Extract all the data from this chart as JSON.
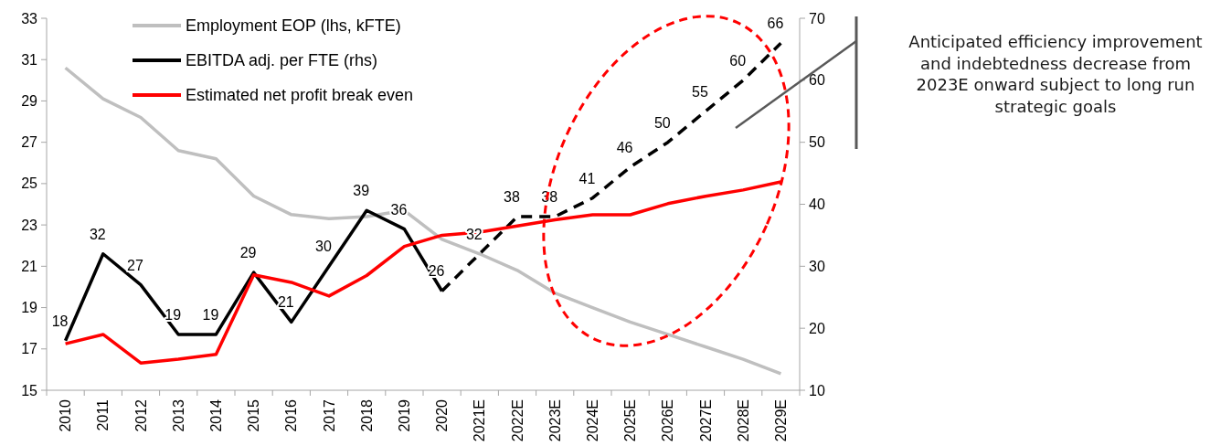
{
  "chart_data": {
    "type": "line",
    "categories": [
      "2010",
      "2011",
      "2012",
      "2013",
      "2014",
      "2015",
      "2016",
      "2017",
      "2018",
      "2019",
      "2020",
      "2021E",
      "2022E",
      "2023E",
      "2024E",
      "2025E",
      "2026E",
      "2027E",
      "2028E",
      "2029E"
    ],
    "series": [
      {
        "name": "Employment EOP (lhs, kFTE)",
        "color": "#bfbfbf",
        "values": [
          30.6,
          29.1,
          28.2,
          26.6,
          26.2,
          24.4,
          23.5,
          23.3,
          23.4,
          23.7,
          22.3,
          21.6,
          20.8,
          19.7,
          19.0,
          18.3,
          17.7,
          17.1,
          16.5,
          15.8
        ]
      },
      {
        "name": "EBITDA adj. per FTE (rhs)",
        "color": "#000000",
        "axis": "y2",
        "values": [
          18,
          32,
          27,
          19,
          19,
          29,
          21,
          30,
          39,
          36,
          26,
          null,
          null,
          null,
          null,
          null,
          null,
          null,
          null,
          null
        ],
        "value_labels": [
          "18",
          "32",
          "27",
          "19",
          "19",
          "29",
          "21",
          "30",
          "39",
          "36",
          "26",
          null,
          null,
          null,
          null,
          null,
          null,
          null,
          null,
          null
        ]
      },
      {
        "color": "#000000",
        "axis": "y2",
        "line_style": "dashed",
        "values": [
          null,
          null,
          null,
          null,
          null,
          null,
          null,
          null,
          null,
          null,
          26,
          32,
          38,
          38,
          41,
          46,
          50,
          55,
          60,
          66
        ],
        "value_labels": [
          null,
          null,
          null,
          null,
          null,
          null,
          null,
          null,
          null,
          null,
          null,
          "32",
          "38",
          "38",
          "41",
          "46",
          "50",
          "55",
          "60",
          "66"
        ]
      },
      {
        "name": "Estimated net profit break even",
        "color": "#ff0000",
        "axis": "y2",
        "values": [
          17.5,
          19.0,
          14.4,
          15.0,
          15.8,
          28.6,
          27.4,
          25.2,
          28.5,
          33.2,
          35.0,
          35.5,
          36.5,
          37.5,
          38.3,
          38.3,
          40.1,
          41.3,
          42.3,
          43.6
        ]
      }
    ],
    "ylim": [
      15,
      33
    ],
    "yticks": [
      15,
      17,
      19,
      21,
      23,
      25,
      27,
      29,
      31,
      33
    ],
    "y2lim": [
      10,
      70
    ],
    "y2ticks": [
      10,
      20,
      30,
      40,
      50,
      60,
      70
    ],
    "legend": "top left",
    "grid": false,
    "marker": "none",
    "line_style": "solid",
    "annotations": [
      "Anticipated efficiency improvement and indebtedness decrease from 2023E onward subject to long run strategic goals"
    ]
  }
}
